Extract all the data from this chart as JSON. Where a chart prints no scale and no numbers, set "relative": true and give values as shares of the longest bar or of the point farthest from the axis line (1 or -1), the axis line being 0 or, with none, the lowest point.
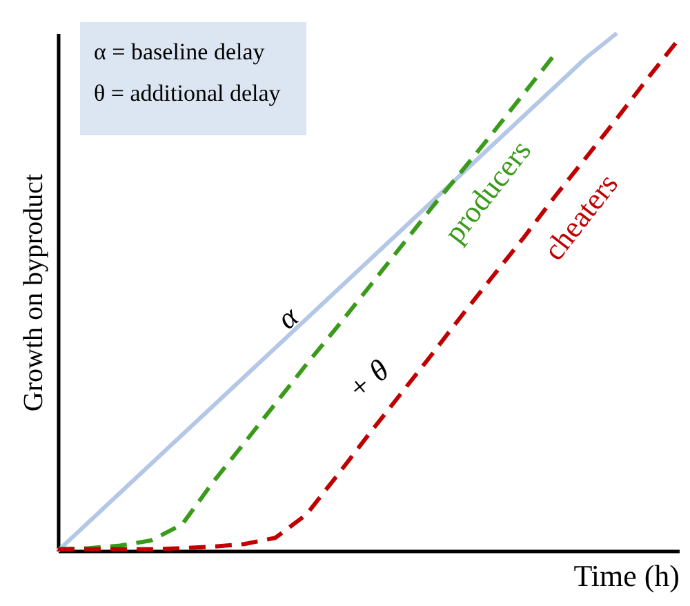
{
  "chart_data": {
    "type": "line",
    "relative": true,
    "xlabel": "Time (h)",
    "ylabel": "Growth on byproduct",
    "grid": false,
    "marker": "none",
    "categories": [
      null,
      null,
      null,
      null,
      null,
      null,
      null,
      null,
      null,
      null,
      null,
      null,
      null,
      null,
      null,
      null,
      null,
      null,
      null,
      null,
      null
    ],
    "series": [
      {
        "color": "#b4c7e7",
        "line_style": "solid",
        "values": [
          0,
          0.056,
          0.112,
          0.168,
          0.224,
          0.28,
          0.336,
          0.392,
          0.448,
          0.504,
          0.56,
          0.616,
          0.672,
          0.728,
          0.784,
          0.84,
          0.896,
          0.952,
          1,
          null,
          null
        ]
      },
      {
        "name": "producers",
        "color": "#3a9a1a",
        "line_style": "dashed",
        "values": [
          0.003,
          0.005,
          0.01,
          0.02,
          0.051,
          0.133,
          0.208,
          0.284,
          0.36,
          0.433,
          0.508,
          0.584,
          0.66,
          0.733,
          0.807,
          0.883,
          0.959,
          null,
          null,
          null,
          null
        ]
      },
      {
        "name": "cheaters",
        "color": "#c00000",
        "line_style": "dashed",
        "values": [
          0.003,
          0.003,
          0.003,
          0.003,
          0.005,
          0.008,
          0.013,
          0.025,
          0.07,
          0.146,
          0.224,
          0.3,
          0.376,
          0.454,
          0.53,
          0.605,
          0.684,
          0.759,
          0.835,
          0.913,
          0.989
        ]
      }
    ],
    "annotations": [
      "α = baseline delay",
      "θ = additional delay",
      "α",
      "+ θ"
    ]
  }
}
